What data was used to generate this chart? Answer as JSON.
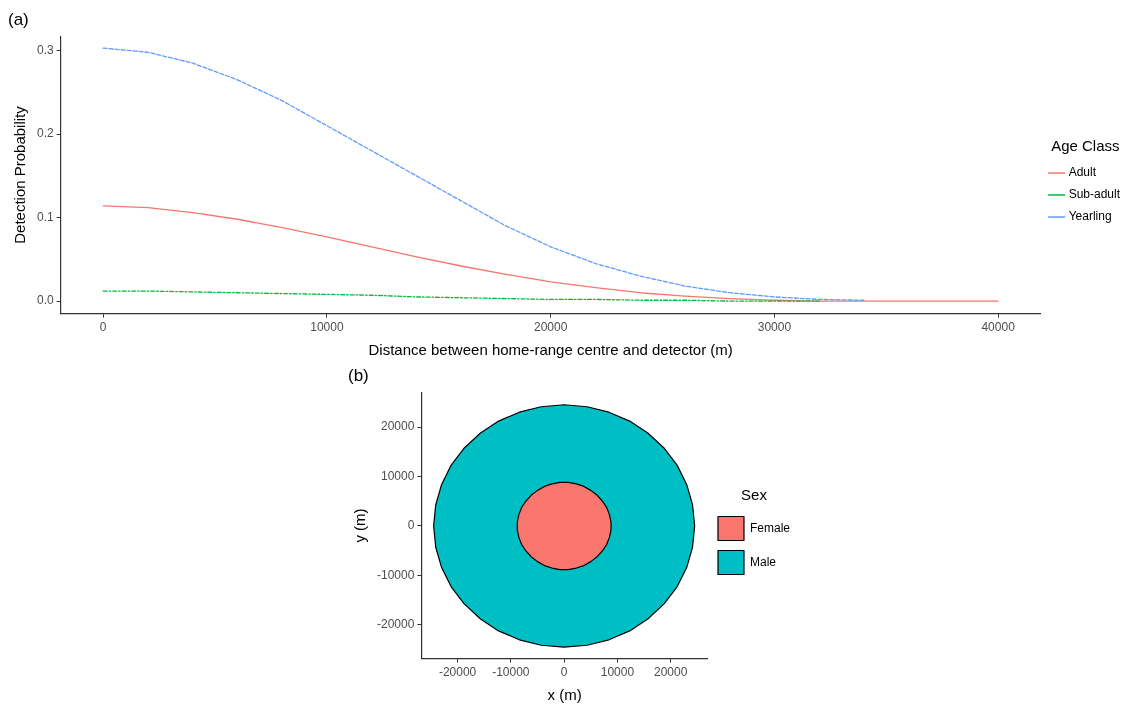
{
  "chart_data": [
    {
      "type": "line",
      "title": "(a)",
      "xlabel": "Distance between home-range centre and detector (m)",
      "ylabel": "Detection Probability",
      "legend_title": "Age Class",
      "legend": "right",
      "x": [
        0,
        2000,
        4000,
        6000,
        8000,
        10000,
        12000,
        14000,
        16000,
        18000,
        20000,
        22000,
        24000,
        26000,
        28000,
        30000,
        32000,
        34000,
        36000,
        38000,
        40000
      ],
      "series": [
        {
          "name": "Adult",
          "color": "#f8766d",
          "line_style": "solid",
          "values": [
            0.114,
            0.112,
            0.106,
            0.098,
            0.088,
            0.077,
            0.065,
            0.053,
            0.042,
            0.032,
            0.023,
            0.016,
            0.01,
            0.006,
            0.003,
            0.001,
            0,
            0,
            0,
            0,
            0
          ]
        },
        {
          "name": "Sub-adult",
          "color": "#00ba38",
          "line_style": "dashdot",
          "values": [
            0.012,
            0.012,
            0.011,
            0.01,
            0.009,
            0.008,
            0.007,
            0.005,
            0.004,
            0.003,
            0.002,
            0.002,
            0.001,
            0.001,
            0,
            0,
            0,
            null,
            null,
            null,
            null
          ]
        },
        {
          "name": "Yearling",
          "color": "#619cff",
          "line_style": "dashed",
          "values": [
            0.303,
            0.298,
            0.285,
            0.265,
            0.24,
            0.21,
            0.18,
            0.15,
            0.12,
            0.09,
            0.065,
            0.045,
            0.03,
            0.018,
            0.01,
            0.005,
            0.002,
            0.001,
            null,
            null,
            null
          ]
        }
      ],
      "xlim": [
        -1900,
        41900
      ],
      "xticks": [
        0,
        10000,
        20000,
        30000,
        40000
      ],
      "ylim": [
        -0.015,
        0.317
      ],
      "yticks": [
        {
          "value": 0,
          "label": "0.0"
        },
        0.1,
        0.2,
        0.3
      ]
    },
    {
      "type": "area",
      "title": "(b)",
      "xlabel": "x (m)",
      "ylabel": "y (m)",
      "legend_title": "Sex",
      "legend": "right",
      "series": [
        {
          "name": "Female",
          "color": "#f8766d",
          "x": [
            8800,
            8500,
            8000,
            7200,
            6200,
            5000,
            3700,
            2300,
            800,
            -800,
            -2300,
            -3700,
            -5000,
            -6200,
            -7200,
            -8000,
            -8500,
            -8800,
            -8800,
            -8500,
            -8000,
            -7200,
            -6200,
            -5000,
            -3700,
            -2300,
            -800,
            800,
            2300,
            3700,
            5000,
            6200,
            7200,
            8000,
            8500,
            8800,
            8800
          ],
          "values": [
            800,
            2300,
            3700,
            5000,
            6200,
            7200,
            8000,
            8500,
            8800,
            8800,
            8500,
            8000,
            7200,
            6200,
            5000,
            3700,
            2300,
            800,
            -800,
            -2300,
            -3700,
            -5000,
            -6200,
            -7200,
            -8000,
            -8500,
            -8800,
            -8800,
            -8500,
            -8000,
            -7200,
            -6200,
            -5000,
            -3700,
            -2300,
            -800,
            800
          ]
        },
        {
          "name": "Male",
          "color": "#00bfc4",
          "x": [
            24500,
            24100,
            23000,
            21200,
            18800,
            15700,
            12300,
            8400,
            4300,
            0,
            -4300,
            -8400,
            -12300,
            -15700,
            -18800,
            -21200,
            -23000,
            -24100,
            -24500,
            -24100,
            -23000,
            -21200,
            -18800,
            -15700,
            -12300,
            -8400,
            -4300,
            0,
            4300,
            8400,
            12300,
            15700,
            18800,
            21200,
            23000,
            24100,
            24500
          ],
          "values": [
            0,
            4300,
            8400,
            12300,
            15700,
            18800,
            21200,
            23000,
            24100,
            24500,
            24100,
            23000,
            21200,
            18800,
            15700,
            12300,
            8400,
            4300,
            0,
            -4300,
            -8400,
            -12300,
            -15700,
            -18800,
            -21200,
            -23000,
            -24100,
            -24500,
            -24100,
            -23000,
            -21200,
            -18800,
            -15700,
            -12300,
            -8400,
            -4300,
            0
          ]
        }
      ],
      "xlim": [
        -26800,
        27000
      ],
      "xticks": [
        -20000,
        -10000,
        0,
        10000,
        20000
      ],
      "ylim": [
        -26800,
        27000
      ],
      "yticks": [
        -20000,
        -10000,
        0,
        10000,
        20000
      ]
    }
  ]
}
